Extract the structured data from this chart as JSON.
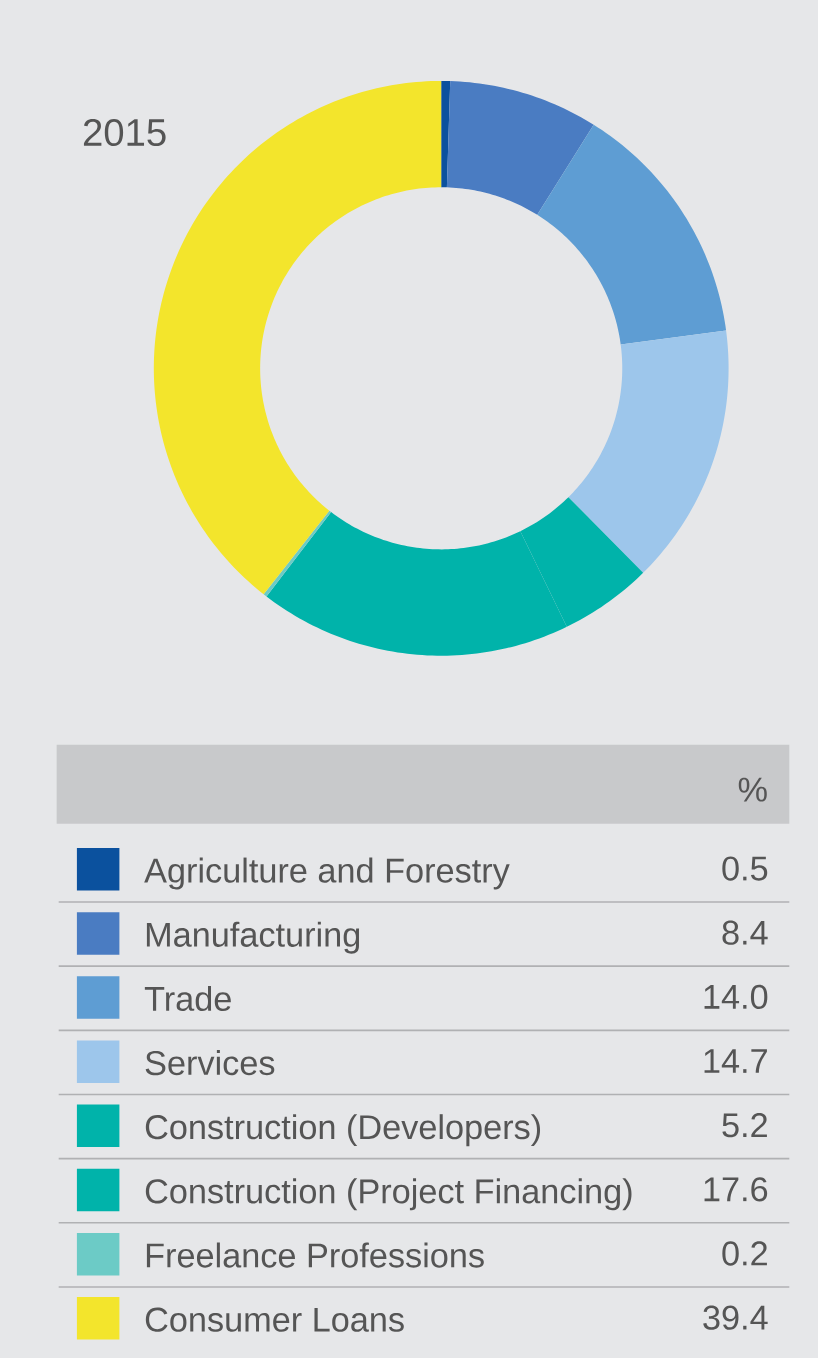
{
  "chart_data": {
    "type": "donut",
    "title": "2015",
    "legend_title": "%",
    "legend": "bottom",
    "value_labels": [
      "0.5",
      "8.4",
      "14.0",
      "14.7",
      "5.2",
      "17.6",
      "0.2",
      "39.4"
    ],
    "categories": [
      "Agriculture and Forestry",
      "Manufacturing",
      "Trade",
      "Services",
      "Construction (Developers)",
      "Construction (Project Financing)",
      "Freelance Professions",
      "Consumer Loans"
    ],
    "values": [
      0.5,
      8.4,
      14.0,
      14.7,
      5.2,
      17.6,
      0.2,
      39.4
    ],
    "colors": [
      "#0b519e",
      "#4a7cc2",
      "#5e9dd3",
      "#9dc6eb",
      "#00b3aa",
      "#00b3aa",
      "#6ccbc6",
      "#f3e52c"
    ]
  }
}
